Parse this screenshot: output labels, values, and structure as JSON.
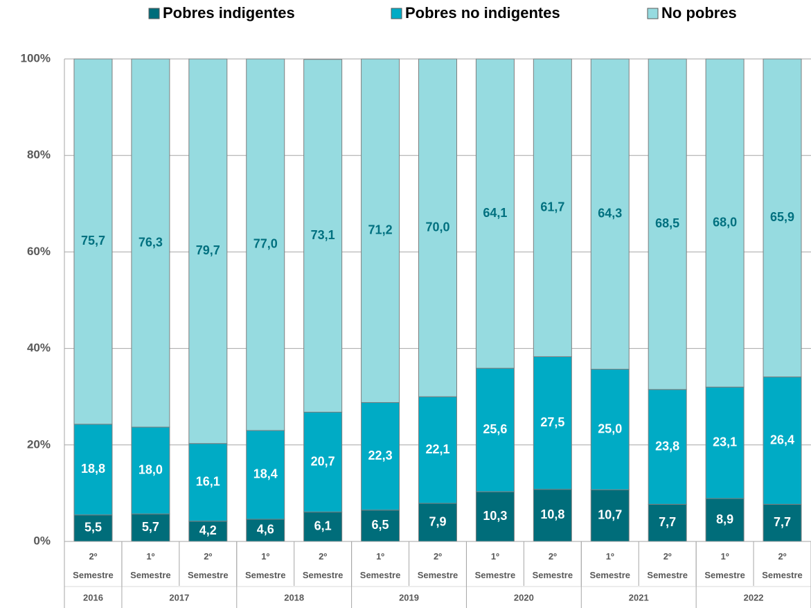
{
  "chart_data": {
    "type": "stacked_bar",
    "categories": [
      "2º Semestre",
      "1º Semestre",
      "2º Semestre",
      "1º Semestre",
      "2º Semestre",
      "1º Semestre",
      "2º Semestre",
      "1º Semestre",
      "2º Semestre",
      "1º Semestre",
      "2º Semestre",
      "1º Semestre",
      "2º Semestre"
    ],
    "year_groups": [
      {
        "label": "2016",
        "span": 1
      },
      {
        "label": "2017",
        "span": 2
      },
      {
        "label": "2018",
        "span": 2
      },
      {
        "label": "2019",
        "span": 2
      },
      {
        "label": "2020",
        "span": 2
      },
      {
        "label": "2021",
        "span": 2
      },
      {
        "label": "2022",
        "span": 2
      }
    ],
    "series": [
      {
        "name": "Pobres indigentes",
        "color": "#006d7a",
        "label_color": "#ffffff",
        "values": [
          5.5,
          5.7,
          4.2,
          4.6,
          6.1,
          6.5,
          7.9,
          10.3,
          10.8,
          10.7,
          7.7,
          8.9,
          7.7
        ],
        "value_labels": [
          "5,5",
          "5,7",
          "4,2",
          "4,6",
          "6,1",
          "6,5",
          "7,9",
          "10,3",
          "10,8",
          "10,7",
          "7,7",
          "8,9",
          "7,7"
        ]
      },
      {
        "name": "Pobres no indigentes",
        "color": "#00abc5",
        "label_color": "#ffffff",
        "values": [
          18.8,
          18.0,
          16.1,
          18.4,
          20.7,
          22.3,
          22.1,
          25.6,
          27.5,
          25.0,
          23.8,
          23.1,
          26.4
        ],
        "value_labels": [
          "18,8",
          "18,0",
          "16,1",
          "18,4",
          "20,7",
          "22,3",
          "22,1",
          "25,6",
          "27,5",
          "25,0",
          "23,8",
          "23,1",
          "26,4"
        ]
      },
      {
        "name": "No pobres",
        "color": "#96dbe0",
        "label_color": "#00707f",
        "values": [
          75.7,
          76.3,
          79.7,
          77.0,
          73.1,
          71.2,
          70.0,
          64.1,
          61.7,
          64.3,
          68.5,
          68.0,
          65.9
        ],
        "value_labels": [
          "75,7",
          "76,3",
          "79,7",
          "77,0",
          "73,1",
          "71,2",
          "70,0",
          "64,1",
          "61,7",
          "64,3",
          "68,5",
          "68,0",
          "65,9"
        ]
      }
    ],
    "ylim": [
      0,
      100
    ],
    "yticks": [
      {
        "value": 0,
        "label": "0%"
      },
      {
        "value": 20,
        "label": "20%"
      },
      {
        "value": 40,
        "label": "40%"
      },
      {
        "value": 60,
        "label": "60%"
      },
      {
        "value": 80,
        "label": "80%"
      },
      {
        "value": 100,
        "label": "100%"
      }
    ],
    "grid": true,
    "legend": "top"
  }
}
